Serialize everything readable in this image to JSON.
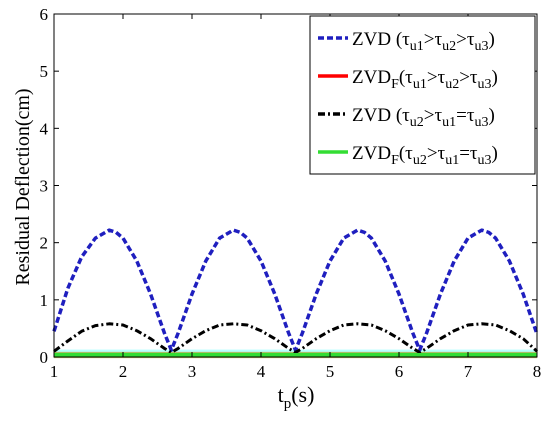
{
  "chart_data": {
    "type": "line",
    "xlabel_main": "t",
    "xlabel_sub": "p",
    "xlabel_rest": "(s)",
    "ylabel": "Residual Deflection(cm)",
    "xlim": [
      1,
      8
    ],
    "ylim": [
      0,
      6
    ],
    "x_ticks": [
      "1",
      "2",
      "3",
      "4",
      "5",
      "6",
      "7",
      "8"
    ],
    "y_ticks": [
      "0",
      "1",
      "2",
      "3",
      "4",
      "5",
      "6"
    ],
    "grid": false,
    "legend_position": "top-right",
    "series": [
      {
        "name": "ZVD (τu1>τu2>τu3)",
        "legend": {
          "main": "ZVD",
          "f": "",
          "pre": "  (τ",
          "s1": "u1",
          "op1": ">τ",
          "s2": "u2",
          "op2": ">τ",
          "s3": "u3",
          "post": ")"
        },
        "color": "#1f1fbf",
        "style": "dash",
        "x": [
          1.0,
          1.2,
          1.4,
          1.6,
          1.8,
          1.9,
          2.0,
          2.2,
          2.4,
          2.6,
          2.7,
          2.8,
          3.0,
          3.2,
          3.4,
          3.6,
          3.7,
          3.8,
          4.0,
          4.2,
          4.4,
          4.5,
          4.6,
          4.8,
          5.0,
          5.2,
          5.4,
          5.5,
          5.6,
          5.8,
          6.0,
          6.2,
          6.3,
          6.4,
          6.6,
          6.8,
          7.0,
          7.2,
          7.3,
          7.4,
          7.6,
          7.8,
          8.0
        ],
        "y": [
          0.45,
          1.2,
          1.75,
          2.08,
          2.22,
          2.18,
          2.08,
          1.68,
          1.1,
          0.42,
          0.12,
          0.42,
          1.1,
          1.68,
          2.08,
          2.22,
          2.18,
          2.08,
          1.68,
          1.1,
          0.42,
          0.12,
          0.42,
          1.1,
          1.68,
          2.08,
          2.22,
          2.18,
          2.08,
          1.68,
          1.1,
          0.42,
          0.12,
          0.42,
          1.1,
          1.68,
          2.08,
          2.22,
          2.18,
          2.08,
          1.68,
          1.1,
          0.4
        ]
      },
      {
        "name": "ZVD_F (τu1>τu2>τu3)",
        "legend": {
          "main": "ZVD",
          "f": "F",
          "pre": "(τ",
          "s1": "u1",
          "op1": ">τ",
          "s2": "u2",
          "op2": ">τ",
          "s3": "u3",
          "post": ")"
        },
        "color": "#ff0000",
        "style": "solid",
        "x": [
          1,
          8
        ],
        "y": [
          0.03,
          0.03
        ]
      },
      {
        "name": "ZVD (τu2>τu1=τu3)",
        "legend": {
          "main": "ZVD",
          "f": "",
          "pre": "  (τ",
          "s1": "u2",
          "op1": ">τ",
          "s2": "u1",
          "op2": "=τ",
          "s3": "u3",
          "post": ")"
        },
        "color": "#000000",
        "style": "dashdot",
        "x": [
          1.0,
          1.2,
          1.4,
          1.6,
          1.8,
          2.0,
          2.2,
          2.4,
          2.6,
          2.7,
          2.8,
          3.0,
          3.2,
          3.4,
          3.6,
          3.8,
          4.0,
          4.2,
          4.4,
          4.5,
          4.6,
          4.8,
          5.0,
          5.2,
          5.4,
          5.6,
          5.8,
          6.0,
          6.2,
          6.3,
          6.4,
          6.6,
          6.8,
          7.0,
          7.2,
          7.4,
          7.6,
          7.8,
          8.0
        ],
        "y": [
          0.1,
          0.28,
          0.45,
          0.55,
          0.58,
          0.56,
          0.46,
          0.32,
          0.15,
          0.08,
          0.15,
          0.32,
          0.46,
          0.56,
          0.58,
          0.56,
          0.46,
          0.32,
          0.15,
          0.08,
          0.15,
          0.32,
          0.46,
          0.56,
          0.58,
          0.56,
          0.46,
          0.32,
          0.15,
          0.08,
          0.15,
          0.32,
          0.46,
          0.56,
          0.58,
          0.56,
          0.46,
          0.32,
          0.1
        ]
      },
      {
        "name": "ZVD_F (τu2>τu1=τu3)",
        "legend": {
          "main": "ZVD",
          "f": "F",
          "pre": "(τ",
          "s1": "u2",
          "op1": ">τ",
          "s2": "u1",
          "op2": "=τ",
          "s3": "u3",
          "post": ")"
        },
        "color": "#33dd33",
        "style": "solid",
        "x": [
          1,
          8
        ],
        "y": [
          0.04,
          0.04
        ]
      }
    ],
    "annotations": {
      "band_color": "#a8a830",
      "highlight_color": "#66ffff"
    }
  }
}
